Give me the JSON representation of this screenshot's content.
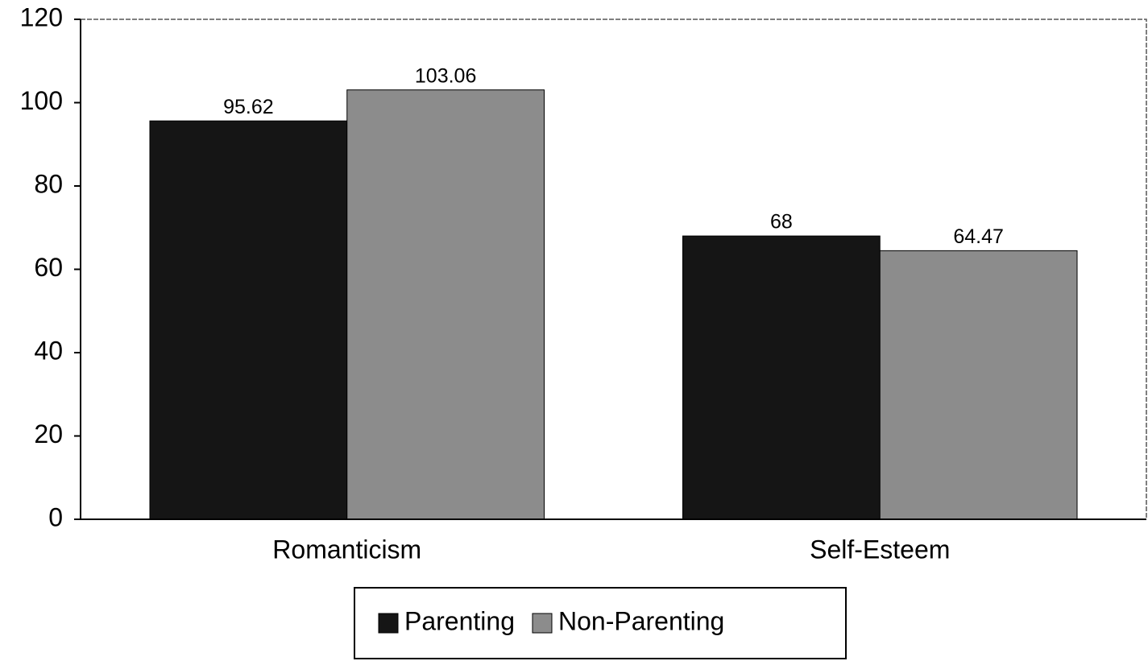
{
  "chart_data": {
    "type": "bar",
    "categories": [
      "Romanticism",
      "Self-Esteem"
    ],
    "series": [
      {
        "name": "Parenting",
        "color": "#151515",
        "values": [
          95.62,
          68
        ]
      },
      {
        "name": "Non-Parenting",
        "color": "#8c8c8c",
        "values": [
          103.06,
          64.47
        ]
      }
    ],
    "ylim": [
      0,
      120
    ],
    "yticks": [
      0,
      20,
      40,
      60,
      80,
      100,
      120
    ],
    "grid": false,
    "legend": "bottom"
  }
}
